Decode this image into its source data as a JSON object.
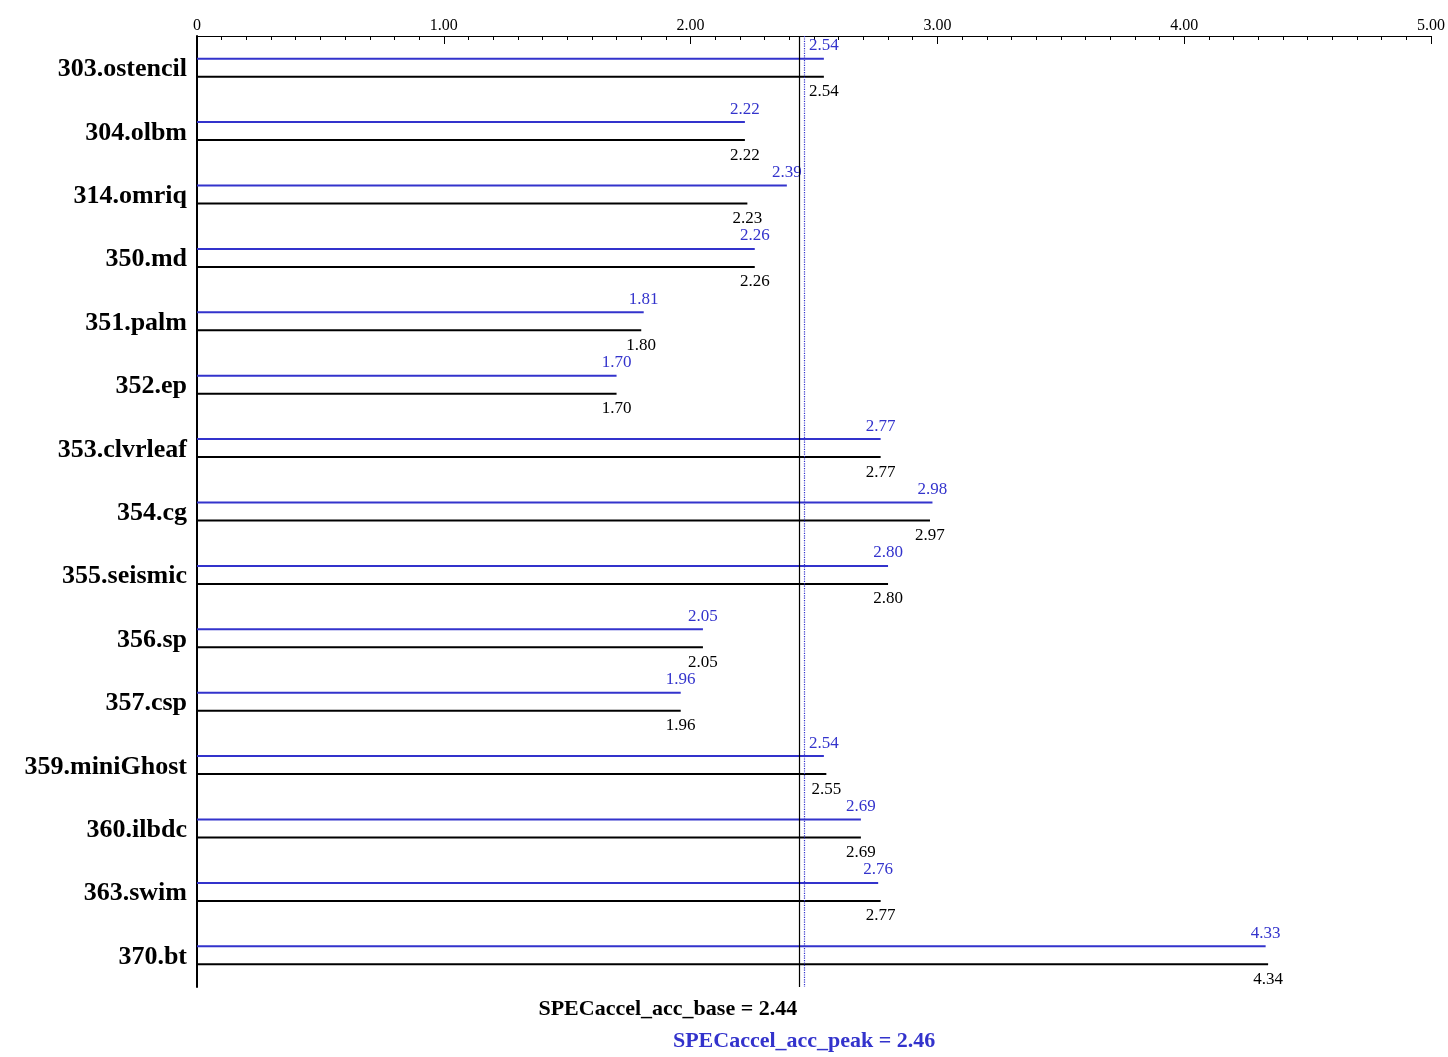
{
  "chart_data": {
    "type": "bar",
    "orientation": "horizontal",
    "categories": [
      "303.ostencil",
      "304.olbm",
      "314.omriq",
      "350.md",
      "351.palm",
      "352.ep",
      "353.clvrleaf",
      "354.cg",
      "355.seismic",
      "356.sp",
      "357.csp",
      "359.miniGhost",
      "360.ilbdc",
      "363.swim",
      "370.bt"
    ],
    "series": [
      {
        "color": "#3333cc",
        "values": [
          2.54,
          2.22,
          2.39,
          2.26,
          1.81,
          1.7,
          2.77,
          2.98,
          2.8,
          2.05,
          1.96,
          2.54,
          2.69,
          2.76,
          4.33
        ],
        "value_labels": [
          "2.54",
          "2.22",
          "2.39",
          "2.26",
          "1.81",
          "1.70",
          "2.77",
          "2.98",
          "2.80",
          "2.05",
          "1.96",
          "2.54",
          "2.69",
          "2.76",
          "4.33"
        ]
      },
      {
        "color": "#000000",
        "values": [
          2.54,
          2.22,
          2.23,
          2.26,
          1.8,
          1.7,
          2.77,
          2.97,
          2.8,
          2.05,
          1.96,
          2.55,
          2.69,
          2.77,
          4.34
        ],
        "value_labels": [
          "2.54",
          "2.22",
          "2.23",
          "2.26",
          "1.80",
          "1.70",
          "2.77",
          "2.97",
          "2.80",
          "2.05",
          "1.96",
          "2.55",
          "2.69",
          "2.77",
          "4.34"
        ]
      }
    ],
    "xlim": [
      0,
      5
    ],
    "xticks": [
      0,
      {
        "value": 1,
        "label": "1.00"
      },
      {
        "value": 2,
        "label": "2.00"
      },
      {
        "value": 3,
        "label": "3.00"
      },
      {
        "value": 4,
        "label": "4.00"
      },
      {
        "value": 5,
        "label": "5.00"
      }
    ],
    "grid": false,
    "ref_lines": [
      {
        "axis": "x",
        "value": 2.44,
        "label": "SPECaccel_acc_base = 2.44",
        "color": "#000000",
        "line_style": "solid"
      },
      {
        "axis": "x",
        "value": 2.46,
        "label": "SPECaccel_acc_peak = 2.46",
        "color": "#3333cc",
        "line_style": "dotted"
      }
    ]
  }
}
